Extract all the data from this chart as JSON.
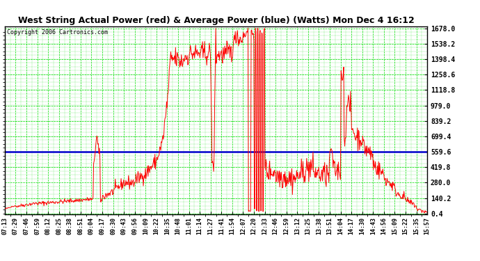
{
  "title": "West String Actual Power (red) & Average Power (blue) (Watts) Mon Dec 4 16:12",
  "copyright": "Copyright 2006 Cartronics.com",
  "ylabel_values": [
    0.4,
    140.2,
    280.0,
    419.8,
    559.6,
    699.4,
    839.2,
    979.0,
    1118.8,
    1258.6,
    1398.4,
    1538.2,
    1678.0
  ],
  "ymin": 0.4,
  "ymax": 1678.0,
  "average_power": 559.6,
  "bg_color": "#ffffff",
  "grid_color": "#00dd00",
  "actual_color": "#ff0000",
  "average_color": "#0000cc",
  "xtick_labels": [
    "07:13",
    "07:29",
    "07:46",
    "07:59",
    "08:12",
    "08:25",
    "08:38",
    "08:51",
    "09:04",
    "09:17",
    "09:30",
    "09:43",
    "09:56",
    "10:09",
    "10:22",
    "10:35",
    "10:48",
    "11:01",
    "11:14",
    "11:27",
    "11:41",
    "11:54",
    "12:07",
    "12:20",
    "12:33",
    "12:46",
    "12:59",
    "13:12",
    "13:25",
    "13:38",
    "13:51",
    "14:04",
    "14:17",
    "14:30",
    "14:43",
    "14:56",
    "15:09",
    "15:22",
    "15:35",
    "15:57"
  ],
  "n_points": 800,
  "seed": 42
}
